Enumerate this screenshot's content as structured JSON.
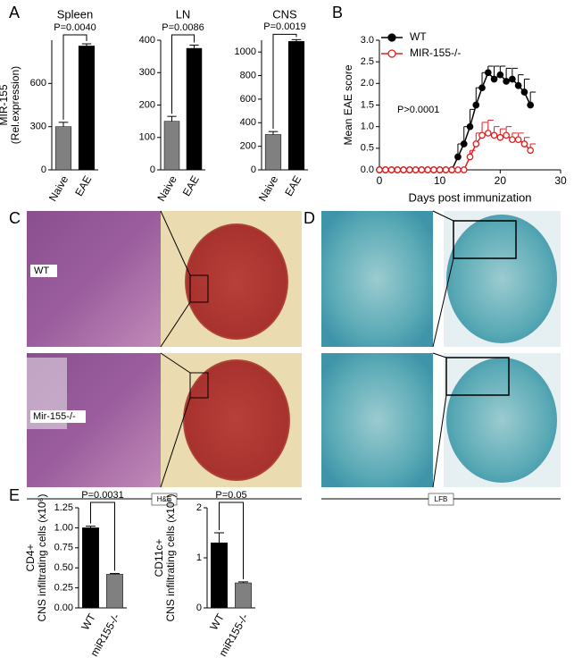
{
  "panels": {
    "labels": [
      "A",
      "B",
      "C",
      "D",
      "E"
    ]
  },
  "images": {
    "row_labels": [
      "WT",
      "Mir-155-/-"
    ],
    "stains": [
      "H&E",
      "LFB"
    ]
  },
  "chart_data": [
    {
      "type": "bar",
      "title": "Spleen",
      "ylabel": [
        "MIR-155",
        "(Rel.expression)"
      ],
      "categories": [
        "Naive",
        "EAE"
      ],
      "values": [
        300,
        860
      ],
      "errors": [
        30,
        15
      ],
      "colors": [
        "#808080",
        "#000000"
      ],
      "ylim": [
        0,
        900
      ],
      "yticks": [
        0,
        300,
        600
      ],
      "annotation": "P=0.0040"
    },
    {
      "type": "bar",
      "title": "LN",
      "categories": [
        "Naive",
        "EAE"
      ],
      "values": [
        150,
        375
      ],
      "errors": [
        15,
        10
      ],
      "colors": [
        "#808080",
        "#000000"
      ],
      "ylim": [
        0,
        400
      ],
      "yticks": [
        0,
        100,
        200,
        300,
        400
      ],
      "annotation": "P=0.0086"
    },
    {
      "type": "bar",
      "title": "CNS",
      "categories": [
        "Naive",
        "EAE"
      ],
      "values": [
        300,
        1090
      ],
      "errors": [
        25,
        15
      ],
      "colors": [
        "#808080",
        "#000000"
      ],
      "ylim": [
        0,
        1100
      ],
      "yticks": [
        0,
        200,
        400,
        600,
        800,
        1000
      ],
      "annotation": "P=0.0019"
    },
    {
      "type": "line",
      "xlabel": "Days post immunization",
      "ylabel": [
        "Mean EAE score"
      ],
      "annotation": "P>0.0001",
      "x": [
        0,
        1,
        2,
        3,
        4,
        5,
        6,
        7,
        8,
        9,
        10,
        11,
        12,
        13,
        14,
        15,
        16,
        17,
        18,
        19,
        20,
        21,
        22,
        23,
        24,
        25
      ],
      "series": [
        {
          "name": "WT",
          "color": "#000000",
          "fill": "#000000",
          "values": [
            0,
            0,
            0,
            0,
            0,
            0,
            0,
            0,
            0,
            0,
            0,
            0,
            0,
            0.3,
            0.6,
            1.0,
            1.5,
            1.9,
            2.25,
            2.1,
            2.2,
            2.05,
            2.1,
            1.95,
            1.8,
            1.5
          ],
          "errors": [
            0,
            0,
            0,
            0,
            0,
            0,
            0,
            0,
            0,
            0,
            0,
            0,
            0,
            0.3,
            0.4,
            0.4,
            0.4,
            0.35,
            0.15,
            0.3,
            0.2,
            0.3,
            0.25,
            0.25,
            0.3,
            0.3
          ]
        },
        {
          "name": "MIR-155-/-",
          "color": "#e02020",
          "fill": "#ffffff",
          "values": [
            0,
            0,
            0,
            0,
            0,
            0,
            0,
            0,
            0,
            0,
            0,
            0,
            0,
            0,
            0,
            0.3,
            0.6,
            0.8,
            0.85,
            0.8,
            0.75,
            0.8,
            0.7,
            0.7,
            0.6,
            0.45
          ],
          "errors": [
            0,
            0,
            0,
            0,
            0,
            0,
            0,
            0,
            0,
            0,
            0,
            0,
            0,
            0,
            0,
            0.15,
            0.25,
            0.3,
            0.3,
            0.2,
            0.2,
            0.2,
            0.15,
            0.15,
            0.15,
            0.15
          ]
        }
      ],
      "legend": "upper left",
      "xlim": [
        0,
        30
      ],
      "xticks": [
        0,
        10,
        20,
        30
      ],
      "ylim": [
        0,
        3
      ],
      "yticks": [
        {
          "value": 0,
          "label": "0.0"
        },
        0.5,
        {
          "value": 1,
          "label": "1.0"
        },
        1.5,
        {
          "value": 2,
          "label": "2.0"
        },
        2.5,
        {
          "value": 3,
          "label": "3.0"
        }
      ]
    },
    {
      "type": "bar",
      "ylabel": [
        "CD4+",
        "CNS infiltrating cells (x10⁶)"
      ],
      "categories": [
        "WT",
        "miR155-/-"
      ],
      "values": [
        1.0,
        0.42
      ],
      "errors": [
        0.02,
        0.01
      ],
      "colors": [
        "#000000",
        "#808080"
      ],
      "ylim": [
        0,
        1.25
      ],
      "yticks": [
        {
          "value": 0,
          "label": "0.00"
        },
        0.25,
        {
          "value": 0.5,
          "label": "0.50"
        },
        0.75,
        {
          "value": 1,
          "label": "1.00"
        },
        1.25
      ],
      "annotation": "P=0.0031"
    },
    {
      "type": "bar",
      "ylabel": [
        "CD11c+",
        "CNS infiltrating cells (x10⁶)"
      ],
      "categories": [
        "WT",
        "miR155-/-"
      ],
      "values": [
        1.3,
        0.5
      ],
      "errors": [
        0.2,
        0.02
      ],
      "colors": [
        "#000000",
        "#808080"
      ],
      "ylim": [
        0,
        2
      ],
      "yticks": [
        0,
        1,
        2
      ],
      "annotation": "P=0.05"
    }
  ]
}
